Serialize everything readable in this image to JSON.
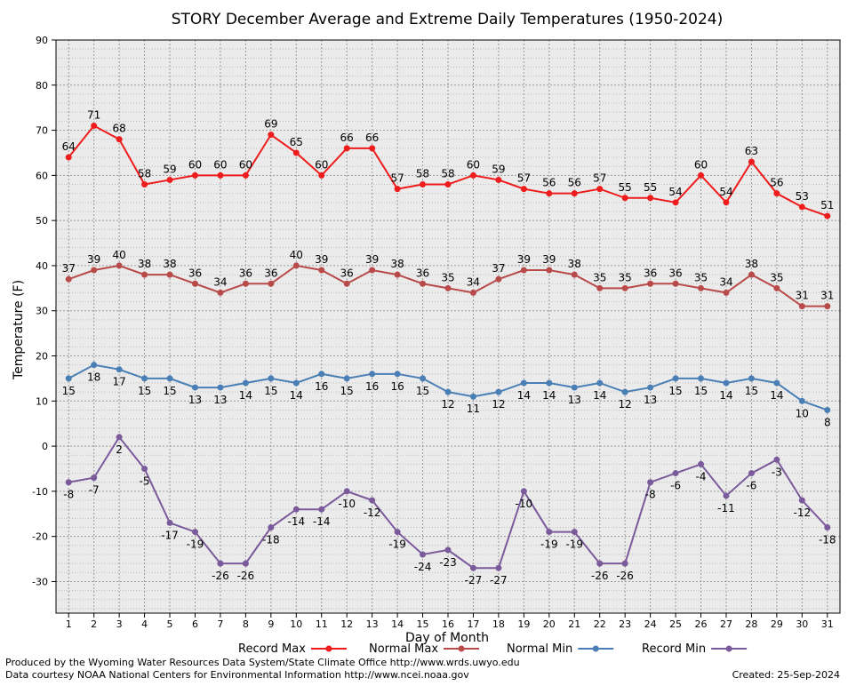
{
  "chart_data": {
    "type": "line",
    "title": "STORY December Average and Extreme Daily Temperatures (1950-2024)",
    "xlabel": "Day of Month",
    "ylabel": "Temperature (F)",
    "ylim": [
      -37,
      90
    ],
    "yticks": [
      -30,
      -20,
      -10,
      0,
      10,
      20,
      30,
      40,
      50,
      60,
      70,
      80,
      90
    ],
    "xlim": [
      0.5,
      31.5
    ],
    "x": [
      1,
      2,
      3,
      4,
      5,
      6,
      7,
      8,
      9,
      10,
      11,
      12,
      13,
      14,
      15,
      16,
      17,
      18,
      19,
      20,
      21,
      22,
      23,
      24,
      25,
      26,
      27,
      28,
      29,
      30,
      31
    ],
    "grid": true,
    "legend_position": "bottom",
    "series": [
      {
        "name": "Record Max",
        "color": "#ee1c1c",
        "label_position": "above",
        "values": [
          64,
          71,
          68,
          58,
          59,
          60,
          60,
          60,
          69,
          65,
          60,
          66,
          66,
          57,
          58,
          58,
          60,
          59,
          57,
          56,
          56,
          57,
          55,
          55,
          54,
          60,
          54,
          63,
          56,
          53,
          51
        ]
      },
      {
        "name": "Normal Max",
        "color": "#b84a4a",
        "label_position": "above",
        "values": [
          37,
          39,
          40,
          38,
          38,
          36,
          34,
          36,
          36,
          40,
          39,
          36,
          39,
          38,
          36,
          35,
          34,
          37,
          39,
          39,
          38,
          35,
          35,
          36,
          36,
          35,
          34,
          38,
          35,
          31,
          31
        ]
      },
      {
        "name": "Normal Min",
        "color": "#4a7fb5",
        "label_position": "below",
        "values": [
          15,
          18,
          17,
          15,
          15,
          13,
          13,
          14,
          15,
          14,
          16,
          15,
          16,
          16,
          15,
          12,
          11,
          12,
          14,
          14,
          13,
          14,
          12,
          13,
          15,
          15,
          14,
          15,
          14,
          10,
          8
        ]
      },
      {
        "name": "Record Min",
        "color": "#7a5a9a",
        "label_position": "below",
        "values": [
          -8,
          -7,
          2,
          -5,
          -17,
          -19,
          -26,
          -26,
          -18,
          -14,
          -14,
          -10,
          -12,
          -19,
          -24,
          -23,
          -27,
          -27,
          -10,
          -19,
          -19,
          -26,
          -26,
          -8,
          -6,
          -4,
          -11,
          -6,
          -3,
          -12,
          -18
        ]
      }
    ]
  },
  "footer": {
    "credit_line_1": "Produced by the Wyoming Water Resources Data System/State Climate Office http://www.wrds.uwyo.edu",
    "credit_line_2": "Data courtesy NOAA National Centers for Environmental Information http://www.ncei.noaa.gov",
    "created": "Created:  25-Sep-2024"
  }
}
